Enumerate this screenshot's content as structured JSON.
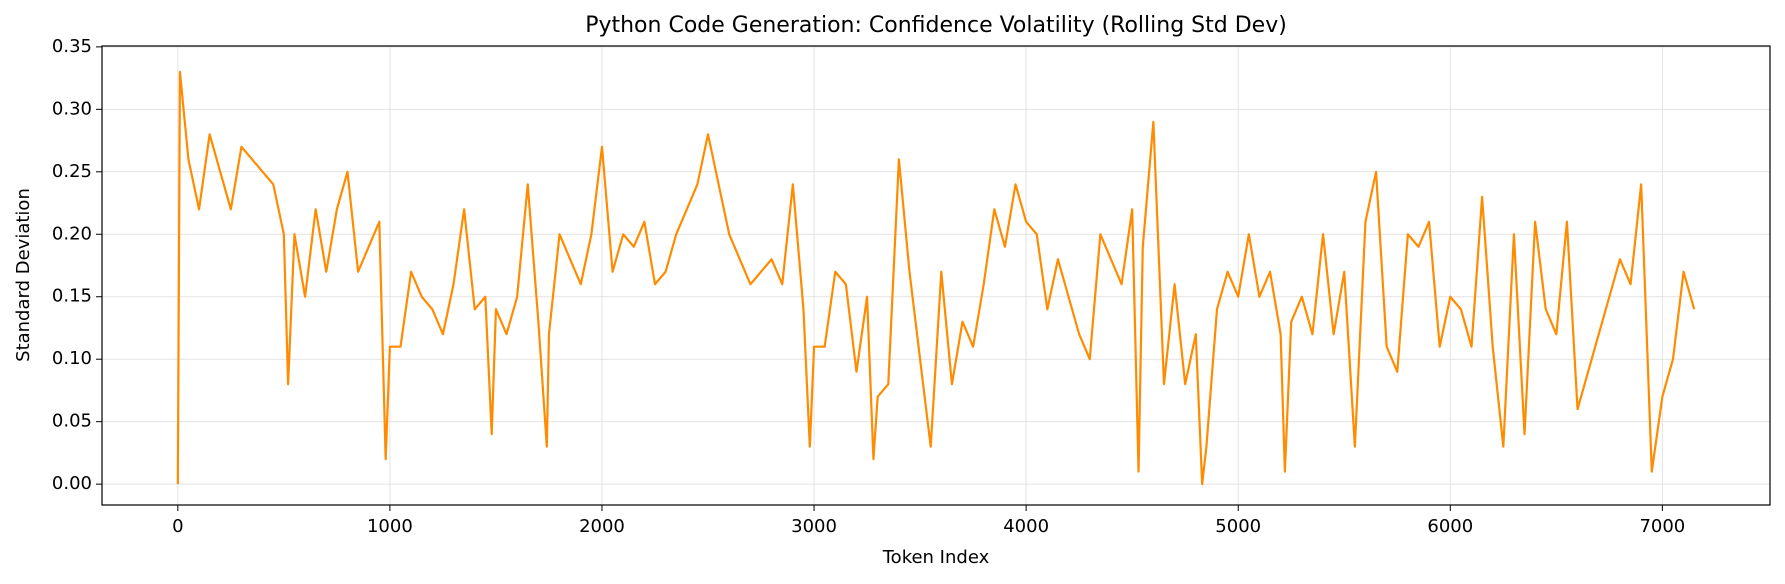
{
  "chart_data": {
    "type": "line",
    "title": "Python Code Generation: Confidence Volatility (Rolling Std Dev)",
    "xlabel": "Token Index",
    "ylabel": "Standard Deviation",
    "color": "#ff8c00",
    "grid": true,
    "xlim": [
      -357.5,
      7507.5
    ],
    "ylim": [
      -0.0167,
      0.3507
    ],
    "xticks": [
      0,
      1000,
      2000,
      3000,
      4000,
      5000,
      6000,
      7000
    ],
    "yticks": [
      {
        "value": 0,
        "label": "0.00"
      },
      0.05,
      {
        "value": 0.1,
        "label": "0.10"
      },
      0.15,
      {
        "value": 0.2,
        "label": "0.20"
      },
      0.25,
      {
        "value": 0.3,
        "label": "0.30"
      },
      0.35
    ],
    "x": [
      0,
      10,
      50,
      100,
      150,
      200,
      250,
      300,
      350,
      400,
      450,
      500,
      520,
      550,
      600,
      650,
      700,
      750,
      800,
      850,
      900,
      950,
      980,
      1000,
      1050,
      1100,
      1150,
      1200,
      1250,
      1300,
      1350,
      1400,
      1450,
      1480,
      1500,
      1550,
      1600,
      1650,
      1700,
      1740,
      1750,
      1800,
      1850,
      1900,
      1950,
      2000,
      2050,
      2100,
      2150,
      2200,
      2250,
      2300,
      2350,
      2400,
      2450,
      2500,
      2550,
      2600,
      2650,
      2700,
      2750,
      2800,
      2850,
      2900,
      2950,
      2980,
      3000,
      3050,
      3100,
      3150,
      3200,
      3250,
      3280,
      3300,
      3350,
      3400,
      3450,
      3500,
      3550,
      3600,
      3650,
      3700,
      3750,
      3800,
      3850,
      3900,
      3950,
      4000,
      4050,
      4100,
      4150,
      4200,
      4250,
      4300,
      4350,
      4400,
      4450,
      4500,
      4530,
      4550,
      4600,
      4650,
      4700,
      4750,
      4800,
      4830,
      4850,
      4900,
      4950,
      5000,
      5050,
      5100,
      5150,
      5200,
      5220,
      5250,
      5300,
      5350,
      5400,
      5450,
      5500,
      5550,
      5600,
      5650,
      5700,
      5750,
      5800,
      5850,
      5900,
      5950,
      6000,
      6050,
      6100,
      6150,
      6200,
      6250,
      6300,
      6350,
      6400,
      6450,
      6500,
      6550,
      6600,
      6650,
      6700,
      6750,
      6800,
      6850,
      6900,
      6950,
      7000,
      7050,
      7100,
      7150
    ],
    "values": [
      0.0,
      0.33,
      0.26,
      0.22,
      0.28,
      0.25,
      0.22,
      0.27,
      0.26,
      0.25,
      0.24,
      0.2,
      0.08,
      0.2,
      0.15,
      0.22,
      0.17,
      0.22,
      0.25,
      0.17,
      0.19,
      0.21,
      0.02,
      0.11,
      0.11,
      0.17,
      0.15,
      0.14,
      0.12,
      0.16,
      0.22,
      0.14,
      0.15,
      0.04,
      0.14,
      0.12,
      0.15,
      0.24,
      0.13,
      0.03,
      0.12,
      0.2,
      0.18,
      0.16,
      0.2,
      0.27,
      0.17,
      0.2,
      0.19,
      0.21,
      0.16,
      0.17,
      0.2,
      0.22,
      0.24,
      0.28,
      0.24,
      0.2,
      0.18,
      0.16,
      0.17,
      0.18,
      0.16,
      0.24,
      0.14,
      0.03,
      0.11,
      0.11,
      0.17,
      0.16,
      0.09,
      0.15,
      0.02,
      0.07,
      0.08,
      0.26,
      0.17,
      0.1,
      0.03,
      0.17,
      0.08,
      0.13,
      0.11,
      0.16,
      0.22,
      0.19,
      0.24,
      0.21,
      0.2,
      0.14,
      0.18,
      0.15,
      0.12,
      0.1,
      0.2,
      0.18,
      0.16,
      0.22,
      0.01,
      0.19,
      0.29,
      0.08,
      0.16,
      0.08,
      0.12,
      0.0,
      0.03,
      0.14,
      0.17,
      0.15,
      0.2,
      0.15,
      0.17,
      0.12,
      0.01,
      0.13,
      0.15,
      0.12,
      0.2,
      0.12,
      0.17,
      0.03,
      0.21,
      0.25,
      0.11,
      0.09,
      0.2,
      0.19,
      0.21,
      0.11,
      0.15,
      0.14,
      0.11,
      0.23,
      0.11,
      0.03,
      0.2,
      0.04,
      0.21,
      0.14,
      0.12,
      0.21,
      0.06,
      0.09,
      0.12,
      0.15,
      0.18,
      0.16,
      0.24,
      0.01,
      0.07,
      0.1,
      0.17,
      0.14
    ]
  }
}
